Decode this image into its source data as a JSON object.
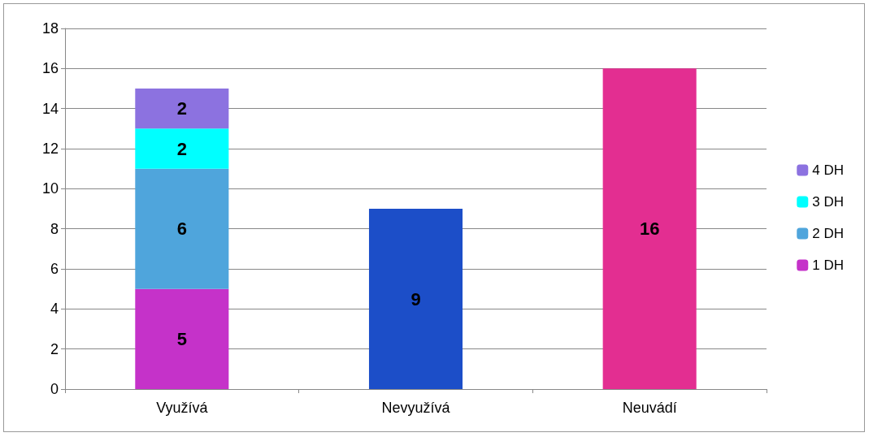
{
  "chart_data": {
    "type": "bar",
    "stacked": true,
    "categories": [
      "Využívá",
      "Nevyužívá",
      "Neuvádí"
    ],
    "series": [
      {
        "name": "1 DH",
        "color": "#c532c9",
        "values": [
          5,
          null,
          null
        ]
      },
      {
        "name": "2 DH",
        "color": "#4fa5dc",
        "values": [
          6,
          null,
          null
        ]
      },
      {
        "name": "3 DH",
        "color": "#00ffff",
        "values": [
          2,
          null,
          null
        ]
      },
      {
        "name": "4 DH",
        "color": "#8c72e0",
        "values": [
          2,
          null,
          null
        ]
      },
      {
        "color": "#1c4ec8",
        "values": [
          null,
          9,
          null
        ]
      },
      {
        "color": "#e32e91",
        "values": [
          null,
          null,
          16
        ]
      }
    ],
    "ylim": [
      0,
      18
    ],
    "yticks": [
      0,
      2,
      4,
      6,
      8,
      10,
      12,
      14,
      16,
      18
    ],
    "grid": "y",
    "legend": "right",
    "data_labels": true
  }
}
